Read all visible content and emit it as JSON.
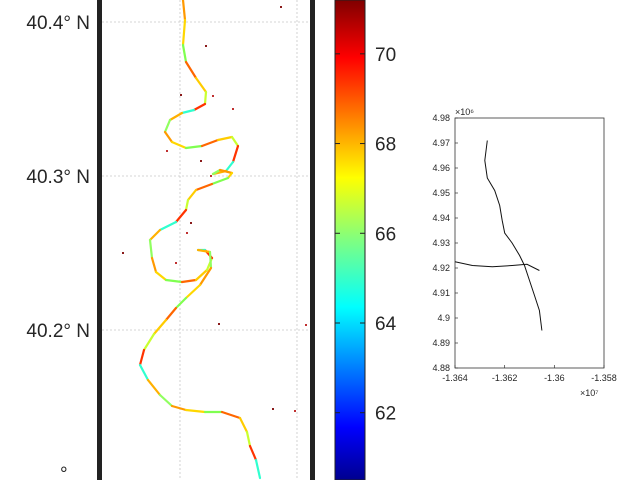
{
  "chart_data": [
    {
      "type": "map",
      "lat_ticks": [
        "40.4° N",
        "40.3° N",
        "40.2° N"
      ],
      "lat_values": [
        40.4,
        40.3,
        40.2
      ],
      "grid": true,
      "colormap": "jet",
      "colorbar": {
        "ticks": [
          "62",
          "64",
          "66",
          "68",
          "70"
        ],
        "tick_values": [
          62,
          64,
          66,
          68,
          70
        ],
        "range": [
          60.5,
          71.2
        ]
      }
    },
    {
      "type": "line",
      "xlim": [
        -1.364,
        -1.358
      ],
      "ylim": [
        4.88,
        4.98
      ],
      "x_ticks": [
        "-1.364",
        "-1.362",
        "-1.36",
        "-1.358"
      ],
      "y_ticks": [
        "4.88",
        "4.89",
        "4.9",
        "4.91",
        "4.92",
        "4.93",
        "4.94",
        "4.95",
        "4.96",
        "4.97",
        "4.98"
      ],
      "x_exponent": "×10⁷",
      "y_exponent": "×10⁶",
      "series": [
        {
          "x": [
            -1.3627,
            -1.3628,
            -1.3627,
            -1.3624,
            -1.3622,
            -1.3621,
            -1.362,
            -1.3617,
            -1.3614,
            -1.3612,
            -1.361,
            -1.3608,
            -1.3606,
            -1.3605
          ],
          "y": [
            4.971,
            4.963,
            4.956,
            4.951,
            4.945,
            4.939,
            4.934,
            4.93,
            4.925,
            4.921,
            4.915,
            4.909,
            4.903,
            4.895
          ]
        },
        {
          "x": [
            -1.364,
            -1.3633,
            -1.3625,
            -1.3617,
            -1.3611,
            -1.3606
          ],
          "y": [
            4.9225,
            4.921,
            4.9205,
            4.921,
            4.9215,
            4.919
          ]
        }
      ]
    }
  ]
}
